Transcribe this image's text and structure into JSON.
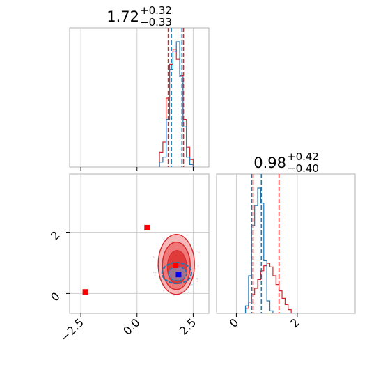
{
  "chart_data": {
    "type": "corner",
    "parameters": [
      {
        "median": "1.72",
        "upper": "+0.32",
        "lower": "−0.33"
      },
      {
        "median": "0.98",
        "upper": "+0.42",
        "lower": "−0.40"
      }
    ],
    "colors": {
      "series_a": "#d62728",
      "series_b": "#1f77b4",
      "marker_red": "#ff0000",
      "marker_blue": "#0000ff"
    },
    "axes": {
      "x_param1": {
        "range": [
          -3.0,
          3.2
        ],
        "ticks": [
          -2.5,
          0.0,
          2.5
        ],
        "tick_labels": [
          "−2.5",
          "0.0",
          "2.5"
        ]
      },
      "y_param2": {
        "range": [
          -0.65,
          3.9
        ],
        "ticks": [
          0,
          2
        ],
        "tick_labels": [
          "0",
          "2"
        ]
      },
      "x_param2": {
        "range": [
          -0.65,
          3.9
        ],
        "ticks": [
          0,
          2
        ],
        "tick_labels": [
          "0",
          "2"
        ]
      }
    },
    "marginal_1": {
      "bins": [
        1.0,
        1.15,
        1.3,
        1.45,
        1.6,
        1.75,
        1.9,
        2.05,
        2.2,
        2.35
      ],
      "series_a_counts": [
        0.12,
        0.2,
        0.55,
        0.82,
        0.94,
        0.86,
        0.73,
        0.38,
        0.16,
        0.06
      ],
      "series_b_counts": [
        0.04,
        0.08,
        0.38,
        0.78,
        0.92,
        1.0,
        0.72,
        0.32,
        0.08,
        0.02
      ],
      "series_a_quantiles": [
        1.39,
        2.07
      ],
      "series_b_quantiles": [
        1.53,
        2.0
      ]
    },
    "marginal_2": {
      "bins": [
        0.3,
        0.4,
        0.5,
        0.6,
        0.7,
        0.8,
        0.9,
        1.0,
        1.1,
        1.2,
        1.3,
        1.4,
        1.5,
        1.6,
        1.7
      ],
      "series_a_counts": [
        0.04,
        0.09,
        0.15,
        0.2,
        0.27,
        0.34,
        0.38,
        0.4,
        0.37,
        0.3,
        0.23,
        0.18,
        0.12,
        0.07,
        0.03
      ],
      "series_b_counts": [
        0.06,
        0.3,
        0.7,
        0.86,
        1.0,
        0.88,
        0.42,
        0.1,
        0.02,
        0.0,
        0.0,
        0.0,
        0.0,
        0.0,
        0.0
      ],
      "series_a_quantiles": [
        0.55,
        1.4
      ],
      "series_b_quantiles": [
        0.5,
        0.82
      ]
    },
    "joint": {
      "series_a_center": [
        1.75,
        0.95
      ],
      "series_b_center": [
        1.8,
        0.6
      ],
      "red_squares": [
        [
          -2.3,
          0.05
        ],
        [
          0.45,
          2.15
        ],
        [
          1.72,
          0.92
        ]
      ],
      "blue_squares": [
        [
          1.85,
          0.62
        ]
      ]
    },
    "grid": true
  }
}
